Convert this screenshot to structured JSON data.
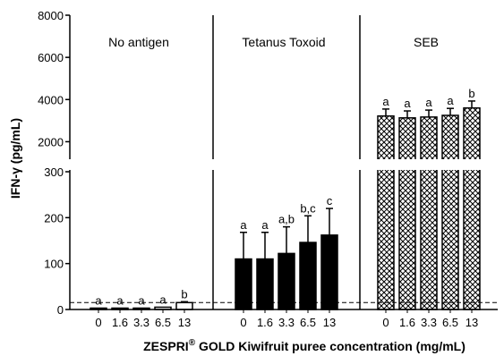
{
  "chart_data": {
    "type": "bar",
    "ylabel": "IFN-γ (pg/mL)",
    "xlabel_parts": [
      "ZESPRI",
      "®",
      " GOLD Kiwifruit puree concentration (mg/mL)"
    ],
    "y_axis": {
      "segments": [
        {
          "range": [
            0,
            300
          ],
          "ticks": [
            "0",
            "100",
            "200",
            "300"
          ]
        },
        {
          "range": [
            1000,
            8000
          ],
          "ticks": [
            "2000",
            "4000",
            "6000",
            "8000"
          ]
        }
      ],
      "broken": true
    },
    "categories": [
      "0",
      "1.6",
      "3.3",
      "6.5",
      "13"
    ],
    "reference_line": {
      "value": 15,
      "style": "dashed"
    },
    "panels": [
      {
        "label": "No antigen",
        "fill": "white",
        "values": [
          3,
          3,
          3,
          5,
          15
        ],
        "errors": [
          0,
          0,
          0,
          0,
          2
        ],
        "significance": [
          "a",
          "a",
          "a",
          "a",
          "b"
        ]
      },
      {
        "label": "Tetanus Toxoid",
        "fill": "black",
        "values": [
          110,
          110,
          122,
          146,
          162
        ],
        "errors": [
          58,
          58,
          58,
          58,
          58
        ],
        "significance": [
          "a",
          "a",
          "a,b",
          "b,c",
          "c"
        ]
      },
      {
        "label": "SEB",
        "fill": "crosshatch",
        "values": [
          3220,
          3130,
          3170,
          3250,
          3600
        ],
        "errors": [
          330,
          330,
          330,
          330,
          330
        ],
        "significance": [
          "a",
          "a",
          "a",
          "a",
          "b"
        ]
      }
    ]
  }
}
